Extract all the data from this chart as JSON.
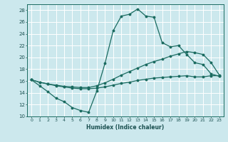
{
  "xlabel": "Humidex (Indice chaleur)",
  "bg_color": "#cce8ed",
  "grid_color": "#ffffff",
  "line_color": "#1a6b60",
  "xlim": [
    -0.5,
    23.5
  ],
  "ylim": [
    10,
    29
  ],
  "xticks": [
    0,
    1,
    2,
    3,
    4,
    5,
    6,
    7,
    8,
    9,
    10,
    11,
    12,
    13,
    14,
    15,
    16,
    17,
    18,
    19,
    20,
    21,
    22,
    23
  ],
  "yticks": [
    10,
    12,
    14,
    16,
    18,
    20,
    22,
    24,
    26,
    28
  ],
  "line1_x": [
    0,
    1,
    2,
    3,
    4,
    5,
    6,
    7,
    8,
    9,
    10,
    11,
    12,
    13,
    14,
    15,
    16,
    17,
    18,
    19,
    20,
    21,
    22,
    23
  ],
  "line1_y": [
    16.2,
    15.2,
    14.2,
    13.1,
    12.5,
    11.5,
    11.0,
    10.7,
    14.3,
    19.0,
    24.5,
    27.0,
    27.3,
    28.2,
    27.0,
    26.8,
    22.5,
    21.8,
    22.0,
    20.5,
    19.1,
    18.8,
    17.2,
    16.8
  ],
  "line2_x": [
    0,
    1,
    2,
    3,
    4,
    5,
    6,
    7,
    8,
    9,
    10,
    11,
    12,
    13,
    14,
    15,
    16,
    17,
    18,
    19,
    20,
    21,
    22,
    23
  ],
  "line2_y": [
    16.2,
    15.8,
    15.5,
    15.3,
    15.1,
    15.0,
    14.9,
    14.9,
    15.2,
    15.7,
    16.3,
    17.0,
    17.6,
    18.2,
    18.8,
    19.3,
    19.7,
    20.2,
    20.6,
    21.0,
    20.8,
    20.5,
    19.1,
    17.0
  ],
  "line3_x": [
    0,
    1,
    2,
    3,
    4,
    5,
    6,
    7,
    8,
    9,
    10,
    11,
    12,
    13,
    14,
    15,
    16,
    17,
    18,
    19,
    20,
    21,
    22,
    23
  ],
  "line3_y": [
    16.2,
    15.8,
    15.5,
    15.2,
    15.0,
    14.8,
    14.7,
    14.7,
    14.8,
    15.0,
    15.3,
    15.6,
    15.8,
    16.1,
    16.3,
    16.5,
    16.6,
    16.7,
    16.8,
    16.9,
    16.7,
    16.7,
    16.9,
    16.9
  ]
}
